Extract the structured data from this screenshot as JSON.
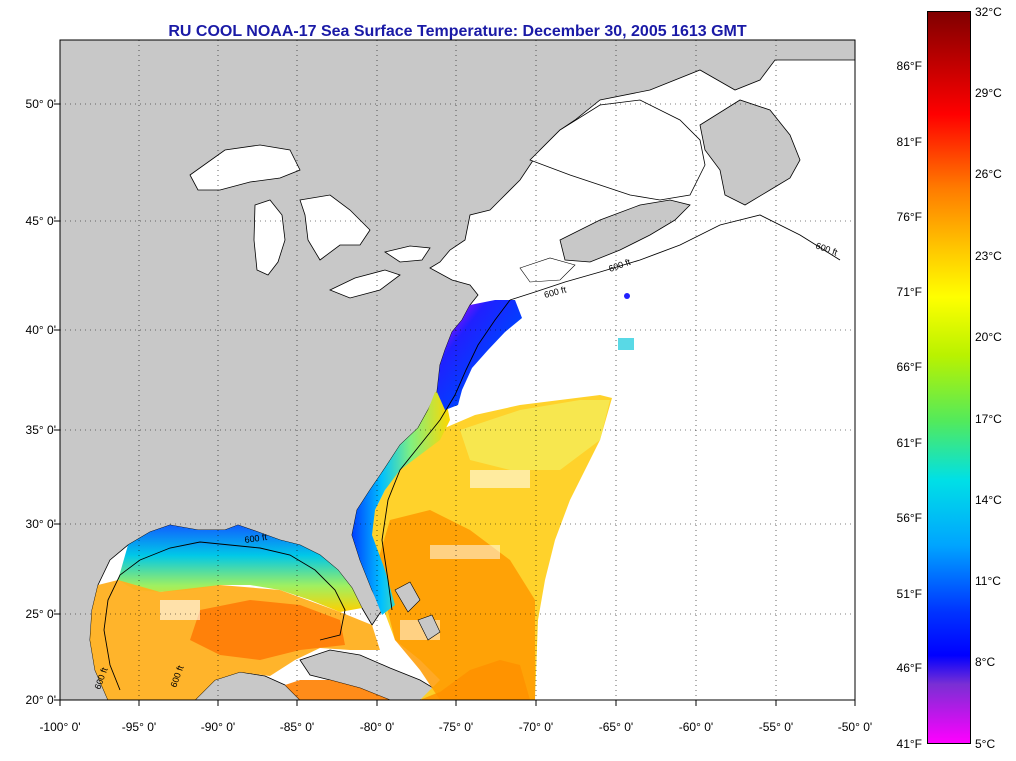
{
  "title": "RU COOL  NOAA-17  Sea Surface Temperature:  December 30, 2005 1613 GMT",
  "lat_labels": [
    "50° 0'",
    "45° 0'",
    "40° 0'",
    "35° 0'",
    "30° 0'",
    "25° 0'",
    "20° 0'"
  ],
  "lon_labels": [
    "-100° 0'",
    "-95° 0'",
    "-90° 0'",
    "-85° 0'",
    "-80° 0'",
    "-75° 0'",
    "-70° 0'",
    "-65° 0'",
    "-60° 0'",
    "-55° 0'",
    "-50° 0'"
  ],
  "colorbar": {
    "fahrenheit": [
      "86°F",
      "81°F",
      "76°F",
      "71°F",
      "66°F",
      "61°F",
      "56°F",
      "51°F",
      "46°F",
      "41°F"
    ],
    "celsius": [
      "32°C",
      "29°C",
      "26°C",
      "23°C",
      "20°C",
      "17°C",
      "14°C",
      "11°C",
      "8°C",
      "5°C"
    ]
  },
  "isobath_label": "600 ft",
  "colors": {
    "title": "#1a1aa6",
    "land": "#c8c8c8",
    "no_data": "#ffffff",
    "cold": "#0000ff",
    "warm": "#ff8000"
  }
}
